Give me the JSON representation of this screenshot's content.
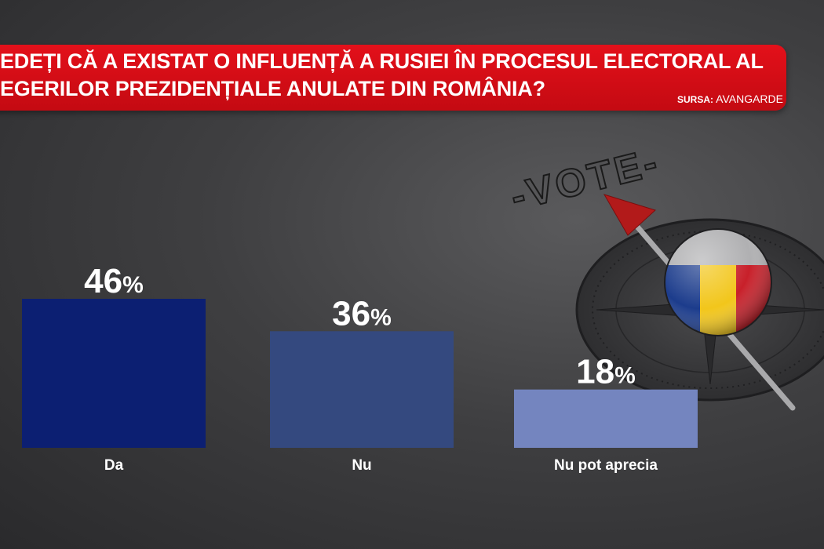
{
  "header": {
    "line1": "EDEȚI CĂ A EXISTAT O INFLUENȚĂ A RUSIEI ÎN PROCESUL ELECTORAL AL",
    "line2": "EGERILOR PREZIDENȚIALE ANULATE DIN ROMÂNIA?",
    "source_label": "SURSA:",
    "source_name": "AVANGARDE"
  },
  "background": {
    "compass_text": "-VOTE-"
  },
  "chart_data": {
    "type": "bar",
    "categories": [
      "Da",
      "Nu",
      "Nu pot aprecia"
    ],
    "values": [
      46,
      36,
      18
    ],
    "value_labels": [
      "46",
      "36",
      "18"
    ],
    "unit": "%",
    "colors": [
      "#0c1f72",
      "#34497f",
      "#7485bf"
    ],
    "ylim": [
      0,
      46
    ],
    "grid": false,
    "legend": "none"
  }
}
